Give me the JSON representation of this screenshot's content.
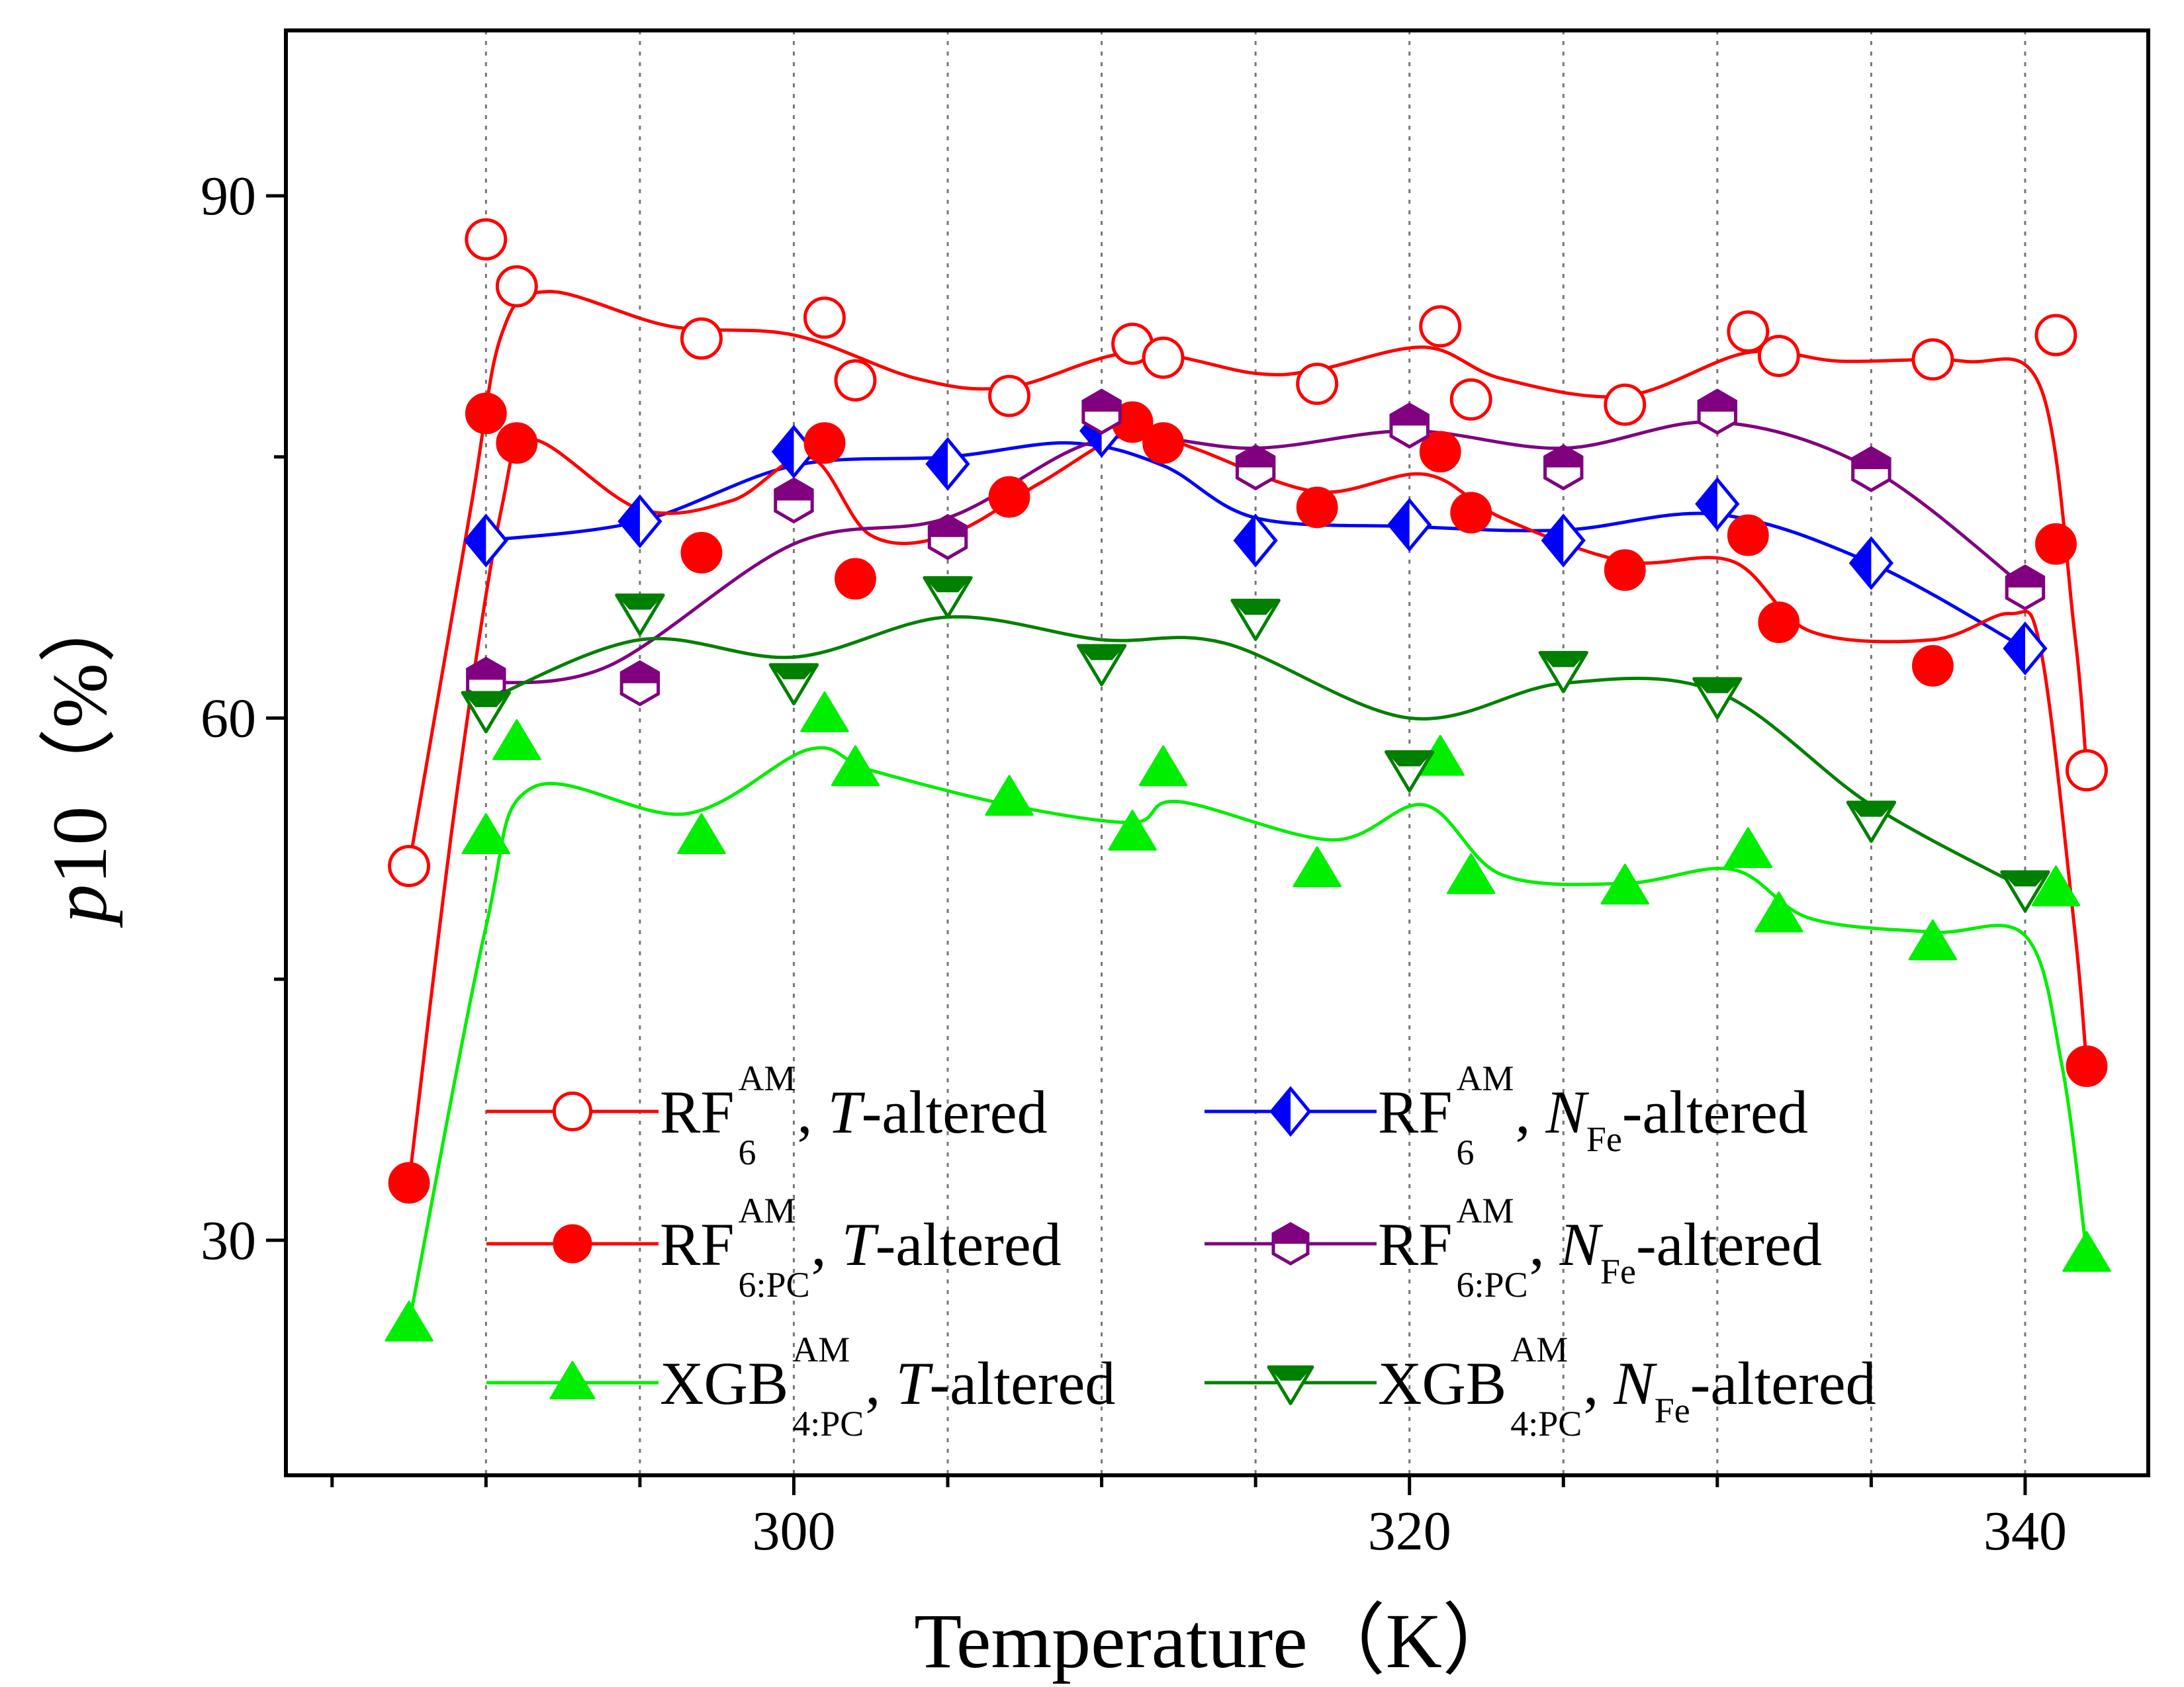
{
  "chart_data": {
    "type": "scatter",
    "xlabel": "Temperature（K）",
    "ylabel_italic": "p",
    "ylabel_rest": "10（%）",
    "xlim": [
      283.5,
      344
    ],
    "ylim": [
      16.5,
      99.5
    ],
    "xticks": [
      300,
      320,
      340
    ],
    "yticks": [
      30,
      60,
      90
    ],
    "grid_x": [
      290,
      295,
      300,
      305,
      310,
      315,
      320,
      325,
      330,
      335,
      340
    ],
    "legend_position": "bottom, three rows two columns",
    "series": [
      {
        "name": "RF6AM, T-altered",
        "legend": {
          "base": "RF",
          "sup": "AM",
          "sub": "6",
          "mid": ", ",
          "italic": "T",
          "italic_sub": "",
          "tail": "-altered"
        },
        "color": "#ff0000",
        "marker": "circle-open",
        "x": [
          287.5,
          290,
          291,
          297,
          301,
          302,
          307,
          311,
          312,
          317,
          321,
          322,
          327,
          331,
          332,
          337,
          341,
          342
        ],
        "y": [
          51.5,
          87.5,
          84.8,
          81.8,
          83,
          79.4,
          78.5,
          81.5,
          80.7,
          79.2,
          82.5,
          78.3,
          78,
          82.2,
          80.8,
          80.6,
          82,
          57
        ],
        "curve": [
          [
            287.5,
            51.5
          ],
          [
            289.5,
            72
          ],
          [
            290.5,
            82
          ],
          [
            292,
            84.5
          ],
          [
            296,
            82.5
          ],
          [
            300,
            82
          ],
          [
            304,
            79.5
          ],
          [
            307,
            79
          ],
          [
            311,
            81
          ],
          [
            315,
            79.8
          ],
          [
            317,
            80
          ],
          [
            320.5,
            81.3
          ],
          [
            323,
            79.5
          ],
          [
            327,
            78.5
          ],
          [
            331,
            81
          ],
          [
            334,
            80.5
          ],
          [
            338,
            80.5
          ],
          [
            340.5,
            79
          ],
          [
            341.6,
            65
          ],
          [
            342,
            57
          ]
        ]
      },
      {
        "name": "RF6AM, NFe-altered",
        "legend": {
          "base": "RF",
          "sup": "AM",
          "sub": "6",
          "mid": ", ",
          "italic": "N",
          "italic_sub": "Fe",
          "tail": "-altered"
        },
        "color": "#0000ff",
        "marker": "diamond-half",
        "x": [
          290,
          295,
          300,
          305,
          310,
          315,
          320,
          325,
          330,
          335,
          340
        ],
        "y": [
          70.2,
          71.3,
          75.3,
          74.6,
          76.5,
          70.2,
          71.1,
          70.2,
          72.3,
          68.9,
          64
        ],
        "curve": [
          [
            290,
            70.2
          ],
          [
            295,
            71.3
          ],
          [
            300,
            74.5
          ],
          [
            305,
            75
          ],
          [
            309,
            75.8
          ],
          [
            312,
            74.5
          ],
          [
            315,
            71.5
          ],
          [
            320,
            71
          ],
          [
            325,
            70.8
          ],
          [
            330,
            71.7
          ],
          [
            335,
            68.9
          ],
          [
            340,
            64
          ]
        ]
      },
      {
        "name": "RF6:PCAM, T-altered",
        "legend": {
          "base": "RF",
          "sup": "AM",
          "sub": "6:PC",
          "mid": ", ",
          "italic": "T",
          "italic_sub": "",
          "tail": "-altered"
        },
        "color": "#ff0000",
        "marker": "circle-filled",
        "x": [
          287.5,
          290,
          291,
          297,
          301,
          302,
          307,
          311,
          312,
          317,
          321,
          322,
          327,
          331,
          332,
          337,
          341,
          342
        ],
        "y": [
          33.3,
          77.5,
          75.8,
          69.5,
          75.8,
          68,
          72.7,
          77,
          75.8,
          72.1,
          75.3,
          71.8,
          68.5,
          70.5,
          65.5,
          63,
          70,
          40
        ],
        "curve": [
          [
            287.5,
            33.3
          ],
          [
            289,
            55
          ],
          [
            290.5,
            72
          ],
          [
            291.5,
            76
          ],
          [
            295,
            72
          ],
          [
            298,
            72.5
          ],
          [
            300.5,
            75
          ],
          [
            302.5,
            70.5
          ],
          [
            305,
            70.5
          ],
          [
            308,
            73.5
          ],
          [
            311,
            76.5
          ],
          [
            313,
            75.5
          ],
          [
            317,
            73
          ],
          [
            320.5,
            74
          ],
          [
            323,
            71.5
          ],
          [
            327,
            69
          ],
          [
            330.5,
            69
          ],
          [
            333,
            65
          ],
          [
            337,
            64.5
          ],
          [
            339.5,
            66
          ],
          [
            340.5,
            64
          ],
          [
            341.6,
            48
          ],
          [
            342,
            40
          ]
        ]
      },
      {
        "name": "RF6:PCAM, NFe-altered",
        "legend": {
          "base": "RF",
          "sup": "AM",
          "sub": "6:PC",
          "mid": ", ",
          "italic": "N",
          "italic_sub": "Fe",
          "tail": "-altered"
        },
        "color": "#800080",
        "marker": "hexagon-half",
        "x": [
          290,
          295,
          300,
          305,
          310,
          315,
          320,
          325,
          330,
          335,
          340
        ],
        "y": [
          62.2,
          62,
          72.5,
          70.4,
          77.6,
          74.4,
          76.8,
          74.4,
          77.6,
          74.3,
          67.5
        ],
        "curve": [
          [
            290,
            62
          ],
          [
            294,
            63
          ],
          [
            300,
            70
          ],
          [
            305,
            71.5
          ],
          [
            310,
            76
          ],
          [
            315,
            75.5
          ],
          [
            320,
            76.5
          ],
          [
            325,
            75.5
          ],
          [
            330,
            77
          ],
          [
            335,
            74.3
          ],
          [
            340,
            67.5
          ]
        ]
      },
      {
        "name": "XGB4:PCAM, T-altered",
        "legend": {
          "base": "XGB",
          "sup": "AM",
          "sub": "4:PC",
          "mid": ", ",
          "italic": "T",
          "italic_sub": "",
          "tail": "-altered"
        },
        "color": "#00ee00",
        "marker": "triangle-up-filled",
        "x": [
          287.5,
          290,
          291,
          297,
          301,
          302,
          307,
          311,
          312,
          317,
          321,
          322,
          327,
          331,
          332,
          337,
          341,
          342
        ],
        "y": [
          25.2,
          53.2,
          58.6,
          53.2,
          60.2,
          57.1,
          55.4,
          53.4,
          57.1,
          51.3,
          57.7,
          50.9,
          50.3,
          52.4,
          48.7,
          47.1,
          50.2,
          29.2
        ],
        "curve": [
          [
            287.5,
            25.2
          ],
          [
            290,
            48
          ],
          [
            291.5,
            56
          ],
          [
            296.5,
            54.5
          ],
          [
            300.5,
            58.2
          ],
          [
            302.5,
            57
          ],
          [
            307,
            55
          ],
          [
            311,
            54
          ],
          [
            312.5,
            55.2
          ],
          [
            317.5,
            53
          ],
          [
            320.5,
            55
          ],
          [
            323,
            51
          ],
          [
            327,
            50.5
          ],
          [
            330.5,
            51.3
          ],
          [
            333,
            48.5
          ],
          [
            337,
            47.7
          ],
          [
            340,
            47.5
          ],
          [
            341.2,
            40
          ],
          [
            342,
            29.2
          ]
        ]
      },
      {
        "name": "XGB4:PCAM, NFe-altered",
        "legend": {
          "base": "XGB",
          "sup": "AM",
          "sub": "4:PC",
          "mid": ", ",
          "italic": "N",
          "italic_sub": "Fe",
          "tail": "-altered"
        },
        "color": "#008000",
        "marker": "triangle-down-half",
        "x": [
          290,
          295,
          300,
          305,
          310,
          315,
          320,
          325,
          330,
          335,
          340
        ],
        "y": [
          60.5,
          66.1,
          62.1,
          67.1,
          63.2,
          65.8,
          57.1,
          62.8,
          61.3,
          54.2,
          50.2
        ],
        "curve": [
          [
            290,
            61
          ],
          [
            295,
            64.5
          ],
          [
            300,
            63.5
          ],
          [
            305,
            65.8
          ],
          [
            310,
            64.5
          ],
          [
            314,
            64.3
          ],
          [
            320,
            60
          ],
          [
            325,
            62
          ],
          [
            330,
            61.5
          ],
          [
            335,
            55
          ],
          [
            340,
            50.2
          ]
        ]
      }
    ]
  }
}
